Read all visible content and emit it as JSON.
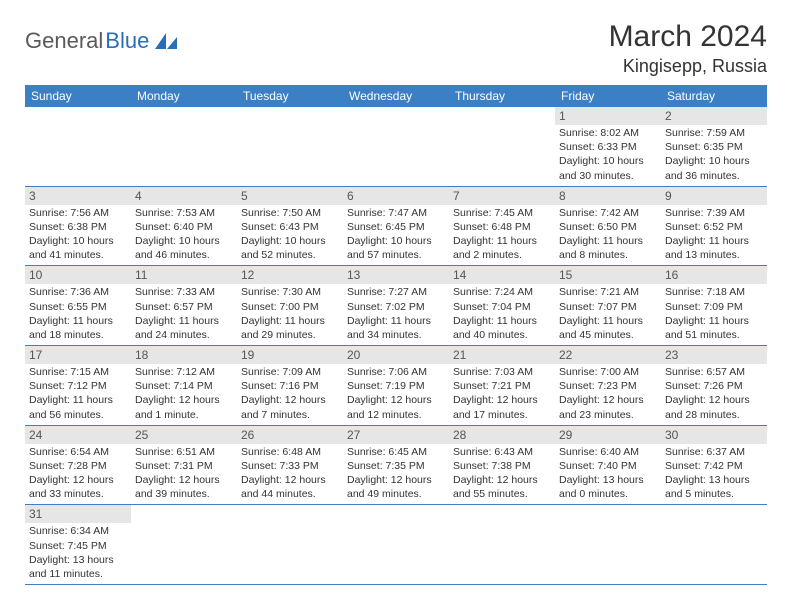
{
  "logo": {
    "part1": "General",
    "part2": "Blue"
  },
  "title": "March 2024",
  "location": "Kingisepp, Russia",
  "colors": {
    "header_bg": "#3b7fc4",
    "header_text": "#ffffff",
    "daynum_bg": "#e6e6e6",
    "border": "#3b7fc4",
    "logo_gray": "#5a5a5a",
    "logo_blue": "#2a6fb5"
  },
  "day_headers": [
    "Sunday",
    "Monday",
    "Tuesday",
    "Wednesday",
    "Thursday",
    "Friday",
    "Saturday"
  ],
  "weeks": [
    [
      null,
      null,
      null,
      null,
      null,
      {
        "n": "1",
        "sr": "Sunrise: 8:02 AM",
        "ss": "Sunset: 6:33 PM",
        "d1": "Daylight: 10 hours",
        "d2": "and 30 minutes."
      },
      {
        "n": "2",
        "sr": "Sunrise: 7:59 AM",
        "ss": "Sunset: 6:35 PM",
        "d1": "Daylight: 10 hours",
        "d2": "and 36 minutes."
      }
    ],
    [
      {
        "n": "3",
        "sr": "Sunrise: 7:56 AM",
        "ss": "Sunset: 6:38 PM",
        "d1": "Daylight: 10 hours",
        "d2": "and 41 minutes."
      },
      {
        "n": "4",
        "sr": "Sunrise: 7:53 AM",
        "ss": "Sunset: 6:40 PM",
        "d1": "Daylight: 10 hours",
        "d2": "and 46 minutes."
      },
      {
        "n": "5",
        "sr": "Sunrise: 7:50 AM",
        "ss": "Sunset: 6:43 PM",
        "d1": "Daylight: 10 hours",
        "d2": "and 52 minutes."
      },
      {
        "n": "6",
        "sr": "Sunrise: 7:47 AM",
        "ss": "Sunset: 6:45 PM",
        "d1": "Daylight: 10 hours",
        "d2": "and 57 minutes."
      },
      {
        "n": "7",
        "sr": "Sunrise: 7:45 AM",
        "ss": "Sunset: 6:48 PM",
        "d1": "Daylight: 11 hours",
        "d2": "and 2 minutes."
      },
      {
        "n": "8",
        "sr": "Sunrise: 7:42 AM",
        "ss": "Sunset: 6:50 PM",
        "d1": "Daylight: 11 hours",
        "d2": "and 8 minutes."
      },
      {
        "n": "9",
        "sr": "Sunrise: 7:39 AM",
        "ss": "Sunset: 6:52 PM",
        "d1": "Daylight: 11 hours",
        "d2": "and 13 minutes."
      }
    ],
    [
      {
        "n": "10",
        "sr": "Sunrise: 7:36 AM",
        "ss": "Sunset: 6:55 PM",
        "d1": "Daylight: 11 hours",
        "d2": "and 18 minutes."
      },
      {
        "n": "11",
        "sr": "Sunrise: 7:33 AM",
        "ss": "Sunset: 6:57 PM",
        "d1": "Daylight: 11 hours",
        "d2": "and 24 minutes."
      },
      {
        "n": "12",
        "sr": "Sunrise: 7:30 AM",
        "ss": "Sunset: 7:00 PM",
        "d1": "Daylight: 11 hours",
        "d2": "and 29 minutes."
      },
      {
        "n": "13",
        "sr": "Sunrise: 7:27 AM",
        "ss": "Sunset: 7:02 PM",
        "d1": "Daylight: 11 hours",
        "d2": "and 34 minutes."
      },
      {
        "n": "14",
        "sr": "Sunrise: 7:24 AM",
        "ss": "Sunset: 7:04 PM",
        "d1": "Daylight: 11 hours",
        "d2": "and 40 minutes."
      },
      {
        "n": "15",
        "sr": "Sunrise: 7:21 AM",
        "ss": "Sunset: 7:07 PM",
        "d1": "Daylight: 11 hours",
        "d2": "and 45 minutes."
      },
      {
        "n": "16",
        "sr": "Sunrise: 7:18 AM",
        "ss": "Sunset: 7:09 PM",
        "d1": "Daylight: 11 hours",
        "d2": "and 51 minutes."
      }
    ],
    [
      {
        "n": "17",
        "sr": "Sunrise: 7:15 AM",
        "ss": "Sunset: 7:12 PM",
        "d1": "Daylight: 11 hours",
        "d2": "and 56 minutes."
      },
      {
        "n": "18",
        "sr": "Sunrise: 7:12 AM",
        "ss": "Sunset: 7:14 PM",
        "d1": "Daylight: 12 hours",
        "d2": "and 1 minute."
      },
      {
        "n": "19",
        "sr": "Sunrise: 7:09 AM",
        "ss": "Sunset: 7:16 PM",
        "d1": "Daylight: 12 hours",
        "d2": "and 7 minutes."
      },
      {
        "n": "20",
        "sr": "Sunrise: 7:06 AM",
        "ss": "Sunset: 7:19 PM",
        "d1": "Daylight: 12 hours",
        "d2": "and 12 minutes."
      },
      {
        "n": "21",
        "sr": "Sunrise: 7:03 AM",
        "ss": "Sunset: 7:21 PM",
        "d1": "Daylight: 12 hours",
        "d2": "and 17 minutes."
      },
      {
        "n": "22",
        "sr": "Sunrise: 7:00 AM",
        "ss": "Sunset: 7:23 PM",
        "d1": "Daylight: 12 hours",
        "d2": "and 23 minutes."
      },
      {
        "n": "23",
        "sr": "Sunrise: 6:57 AM",
        "ss": "Sunset: 7:26 PM",
        "d1": "Daylight: 12 hours",
        "d2": "and 28 minutes."
      }
    ],
    [
      {
        "n": "24",
        "sr": "Sunrise: 6:54 AM",
        "ss": "Sunset: 7:28 PM",
        "d1": "Daylight: 12 hours",
        "d2": "and 33 minutes."
      },
      {
        "n": "25",
        "sr": "Sunrise: 6:51 AM",
        "ss": "Sunset: 7:31 PM",
        "d1": "Daylight: 12 hours",
        "d2": "and 39 minutes."
      },
      {
        "n": "26",
        "sr": "Sunrise: 6:48 AM",
        "ss": "Sunset: 7:33 PM",
        "d1": "Daylight: 12 hours",
        "d2": "and 44 minutes."
      },
      {
        "n": "27",
        "sr": "Sunrise: 6:45 AM",
        "ss": "Sunset: 7:35 PM",
        "d1": "Daylight: 12 hours",
        "d2": "and 49 minutes."
      },
      {
        "n": "28",
        "sr": "Sunrise: 6:43 AM",
        "ss": "Sunset: 7:38 PM",
        "d1": "Daylight: 12 hours",
        "d2": "and 55 minutes."
      },
      {
        "n": "29",
        "sr": "Sunrise: 6:40 AM",
        "ss": "Sunset: 7:40 PM",
        "d1": "Daylight: 13 hours",
        "d2": "and 0 minutes."
      },
      {
        "n": "30",
        "sr": "Sunrise: 6:37 AM",
        "ss": "Sunset: 7:42 PM",
        "d1": "Daylight: 13 hours",
        "d2": "and 5 minutes."
      }
    ],
    [
      {
        "n": "31",
        "sr": "Sunrise: 6:34 AM",
        "ss": "Sunset: 7:45 PM",
        "d1": "Daylight: 13 hours",
        "d2": "and 11 minutes."
      },
      null,
      null,
      null,
      null,
      null,
      null
    ]
  ]
}
